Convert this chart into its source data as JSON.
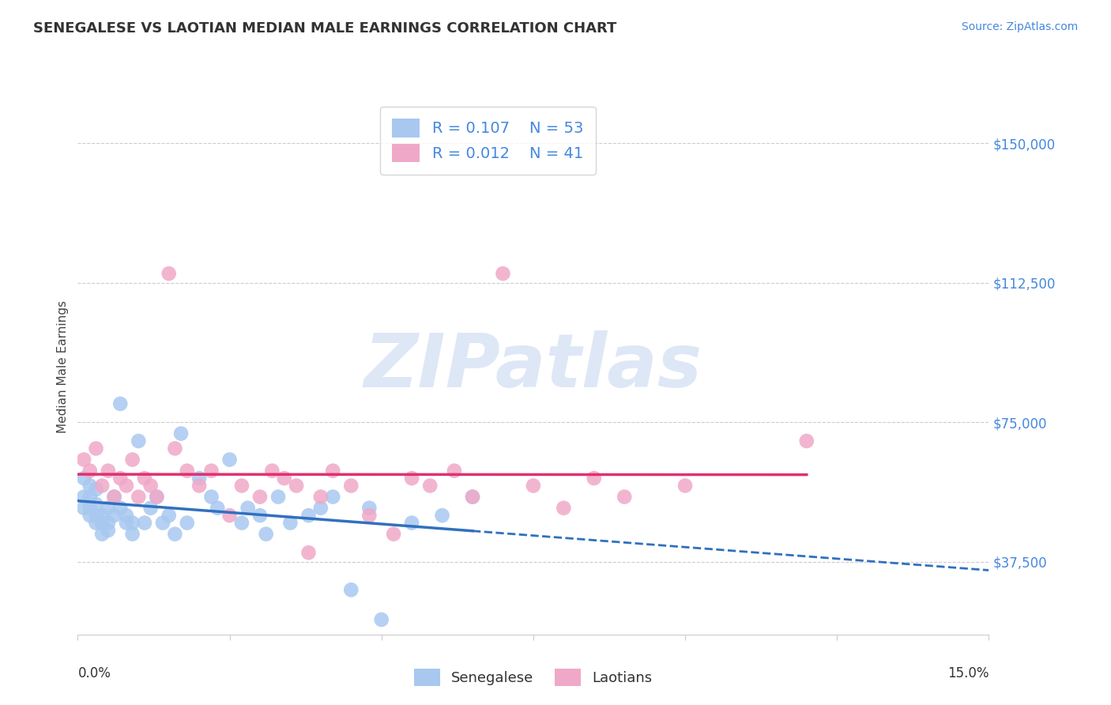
{
  "title": "SENEGALESE VS LAOTIAN MEDIAN MALE EARNINGS CORRELATION CHART",
  "source": "Source: ZipAtlas.com",
  "ylabel": "Median Male Earnings",
  "yticks": [
    37500,
    75000,
    112500,
    150000
  ],
  "ytick_labels": [
    "$37,500",
    "$75,000",
    "$112,500",
    "$150,000"
  ],
  "xlim": [
    0.0,
    0.15
  ],
  "ylim": [
    18000,
    162000
  ],
  "senegalese_R": "0.107",
  "senegalese_N": "53",
  "laotian_R": "0.012",
  "laotian_N": "41",
  "senegalese_color": "#a8c8f0",
  "laotian_color": "#f0a8c8",
  "senegalese_line_color": "#3070c0",
  "laotian_line_color": "#e03070",
  "watermark": "ZIPatlas",
  "watermark_color": "#c8d8f0",
  "legend_text_color": "#4488dd",
  "ytick_color": "#4488dd",
  "source_color": "#4488dd",
  "title_color": "#333333",
  "axis_label_color": "#444444",
  "grid_color": "#cccccc",
  "senegalese_x": [
    0.001,
    0.001,
    0.001,
    0.002,
    0.002,
    0.002,
    0.002,
    0.003,
    0.003,
    0.003,
    0.003,
    0.004,
    0.004,
    0.004,
    0.005,
    0.005,
    0.005,
    0.006,
    0.006,
    0.007,
    0.007,
    0.008,
    0.008,
    0.009,
    0.009,
    0.01,
    0.011,
    0.012,
    0.013,
    0.014,
    0.015,
    0.016,
    0.017,
    0.018,
    0.02,
    0.022,
    0.023,
    0.025,
    0.027,
    0.028,
    0.03,
    0.031,
    0.033,
    0.035,
    0.038,
    0.04,
    0.042,
    0.045,
    0.048,
    0.05,
    0.055,
    0.06,
    0.065
  ],
  "senegalese_y": [
    52000,
    60000,
    55000,
    50000,
    55000,
    58000,
    52000,
    48000,
    50000,
    53000,
    57000,
    45000,
    48000,
    50000,
    52000,
    48000,
    46000,
    55000,
    50000,
    80000,
    52000,
    48000,
    50000,
    45000,
    48000,
    70000,
    48000,
    52000,
    55000,
    48000,
    50000,
    45000,
    72000,
    48000,
    60000,
    55000,
    52000,
    65000,
    48000,
    52000,
    50000,
    45000,
    55000,
    48000,
    50000,
    52000,
    55000,
    30000,
    52000,
    22000,
    48000,
    50000,
    55000
  ],
  "laotian_x": [
    0.001,
    0.002,
    0.003,
    0.004,
    0.005,
    0.006,
    0.007,
    0.008,
    0.009,
    0.01,
    0.011,
    0.012,
    0.013,
    0.015,
    0.016,
    0.018,
    0.02,
    0.022,
    0.025,
    0.027,
    0.03,
    0.032,
    0.034,
    0.036,
    0.038,
    0.04,
    0.042,
    0.045,
    0.048,
    0.052,
    0.055,
    0.058,
    0.062,
    0.065,
    0.07,
    0.075,
    0.08,
    0.085,
    0.09,
    0.1,
    0.12
  ],
  "laotian_y": [
    65000,
    62000,
    68000,
    58000,
    62000,
    55000,
    60000,
    58000,
    65000,
    55000,
    60000,
    58000,
    55000,
    115000,
    68000,
    62000,
    58000,
    62000,
    50000,
    58000,
    55000,
    62000,
    60000,
    58000,
    40000,
    55000,
    62000,
    58000,
    50000,
    45000,
    60000,
    58000,
    62000,
    55000,
    115000,
    58000,
    52000,
    60000,
    55000,
    58000,
    70000
  ]
}
